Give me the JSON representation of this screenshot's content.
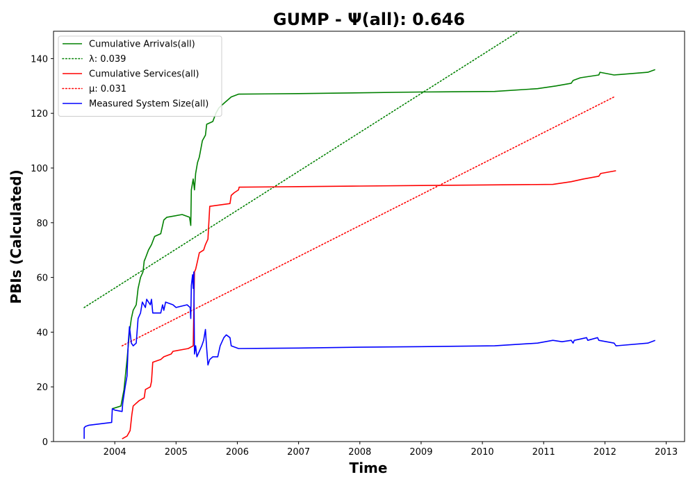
{
  "chart_data": {
    "type": "line",
    "title": "GUMP -  Ψ(all): 0.646",
    "xlabel": "Time",
    "ylabel": "PBIs (Calculated)",
    "xlim": [
      2003.0,
      2013.3
    ],
    "ylim": [
      0,
      150
    ],
    "x_ticks": [
      "2004",
      "2005",
      "2006",
      "2007",
      "2008",
      "2009",
      "2010",
      "2011",
      "2012",
      "2013"
    ],
    "y_ticks": [
      "0",
      "20",
      "40",
      "60",
      "80",
      "100",
      "120",
      "140"
    ],
    "grid": false,
    "legend_position": "upper-left",
    "series": [
      {
        "name": "Cumulative Arrivals(all)",
        "color": "#008000",
        "style": "solid",
        "points": [
          [
            2003.96,
            12
          ],
          [
            2004.1,
            13
          ],
          [
            2004.15,
            19
          ],
          [
            2004.2,
            30
          ],
          [
            2004.24,
            40
          ],
          [
            2004.27,
            45
          ],
          [
            2004.3,
            48
          ],
          [
            2004.35,
            50
          ],
          [
            2004.38,
            56
          ],
          [
            2004.42,
            60
          ],
          [
            2004.46,
            62
          ],
          [
            2004.48,
            66
          ],
          [
            2004.5,
            67
          ],
          [
            2004.55,
            70
          ],
          [
            2004.6,
            72
          ],
          [
            2004.65,
            75
          ],
          [
            2004.75,
            76
          ],
          [
            2004.8,
            81
          ],
          [
            2004.85,
            82
          ],
          [
            2005.1,
            83
          ],
          [
            2005.22,
            82
          ],
          [
            2005.24,
            79
          ],
          [
            2005.25,
            92
          ],
          [
            2005.28,
            96
          ],
          [
            2005.3,
            92
          ],
          [
            2005.32,
            98
          ],
          [
            2005.35,
            102
          ],
          [
            2005.38,
            104
          ],
          [
            2005.43,
            110
          ],
          [
            2005.48,
            112
          ],
          [
            2005.5,
            116
          ],
          [
            2005.6,
            117
          ],
          [
            2005.65,
            120
          ],
          [
            2005.7,
            122
          ],
          [
            2005.8,
            124
          ],
          [
            2005.9,
            126
          ],
          [
            2006.02,
            127
          ],
          [
            2007.0,
            127.2
          ],
          [
            2008.0,
            127.5
          ],
          [
            2009.0,
            127.8
          ],
          [
            2010.2,
            128
          ],
          [
            2010.9,
            129
          ],
          [
            2011.2,
            130
          ],
          [
            2011.45,
            131
          ],
          [
            2011.48,
            132
          ],
          [
            2011.6,
            133
          ],
          [
            2011.9,
            134
          ],
          [
            2011.92,
            135
          ],
          [
            2012.15,
            134
          ],
          [
            2012.7,
            135
          ],
          [
            2012.82,
            136
          ]
        ]
      },
      {
        "name": "λ: 0.039",
        "color": "#008000",
        "style": "dotted",
        "points": [
          [
            2003.5,
            49
          ],
          [
            2010.6,
            150
          ]
        ]
      },
      {
        "name": "Cumulative Services(all)",
        "color": "#ff0000",
        "style": "solid",
        "points": [
          [
            2004.12,
            1
          ],
          [
            2004.2,
            2
          ],
          [
            2004.25,
            4
          ],
          [
            2004.28,
            10
          ],
          [
            2004.3,
            13
          ],
          [
            2004.4,
            15
          ],
          [
            2004.48,
            16
          ],
          [
            2004.5,
            19
          ],
          [
            2004.58,
            20
          ],
          [
            2004.6,
            22
          ],
          [
            2004.62,
            29
          ],
          [
            2004.75,
            30
          ],
          [
            2004.8,
            31
          ],
          [
            2004.92,
            32
          ],
          [
            2004.95,
            33
          ],
          [
            2005.2,
            34
          ],
          [
            2005.28,
            35
          ],
          [
            2005.3,
            62
          ],
          [
            2005.32,
            63
          ],
          [
            2005.35,
            66
          ],
          [
            2005.38,
            69
          ],
          [
            2005.45,
            70
          ],
          [
            2005.48,
            72
          ],
          [
            2005.52,
            74
          ],
          [
            2005.55,
            86
          ],
          [
            2005.88,
            87
          ],
          [
            2005.9,
            90
          ],
          [
            2005.95,
            91
          ],
          [
            2006.02,
            92
          ],
          [
            2006.03,
            93
          ],
          [
            2007.0,
            93.2
          ],
          [
            2008.0,
            93.4
          ],
          [
            2009.0,
            93.6
          ],
          [
            2010.0,
            93.8
          ],
          [
            2011.15,
            94
          ],
          [
            2011.45,
            95
          ],
          [
            2011.65,
            96
          ],
          [
            2011.9,
            97
          ],
          [
            2011.93,
            98
          ],
          [
            2012.18,
            99
          ]
        ]
      },
      {
        "name": "μ: 0.031",
        "color": "#ff0000",
        "style": "dotted",
        "points": [
          [
            2004.12,
            35
          ],
          [
            2012.15,
            126
          ]
        ]
      },
      {
        "name": "Measured System Size(all)",
        "color": "#0000ff",
        "style": "solid",
        "points": [
          [
            2003.5,
            1
          ],
          [
            2003.5,
            5
          ],
          [
            2003.52,
            5.5
          ],
          [
            2003.58,
            6
          ],
          [
            2003.95,
            7
          ],
          [
            2003.96,
            12
          ],
          [
            2004.0,
            11.5
          ],
          [
            2004.12,
            11
          ],
          [
            2004.13,
            14
          ],
          [
            2004.17,
            20
          ],
          [
            2004.2,
            24
          ],
          [
            2004.22,
            36
          ],
          [
            2004.24,
            42
          ],
          [
            2004.27,
            36
          ],
          [
            2004.3,
            35
          ],
          [
            2004.35,
            36
          ],
          [
            2004.38,
            45
          ],
          [
            2004.42,
            47
          ],
          [
            2004.45,
            51
          ],
          [
            2004.5,
            49
          ],
          [
            2004.52,
            52
          ],
          [
            2004.58,
            50
          ],
          [
            2004.6,
            52
          ],
          [
            2004.62,
            47
          ],
          [
            2004.75,
            47
          ],
          [
            2004.78,
            50
          ],
          [
            2004.8,
            48
          ],
          [
            2004.83,
            51
          ],
          [
            2004.95,
            50
          ],
          [
            2005.0,
            49
          ],
          [
            2005.18,
            50
          ],
          [
            2005.23,
            49
          ],
          [
            2005.24,
            45
          ],
          [
            2005.25,
            57
          ],
          [
            2005.27,
            61
          ],
          [
            2005.28,
            56
          ],
          [
            2005.29,
            62
          ],
          [
            2005.3,
            32
          ],
          [
            2005.32,
            35
          ],
          [
            2005.34,
            31
          ],
          [
            2005.38,
            33
          ],
          [
            2005.42,
            35
          ],
          [
            2005.45,
            37
          ],
          [
            2005.48,
            41
          ],
          [
            2005.5,
            34
          ],
          [
            2005.52,
            28
          ],
          [
            2005.55,
            30
          ],
          [
            2005.6,
            31
          ],
          [
            2005.68,
            31
          ],
          [
            2005.72,
            35
          ],
          [
            2005.78,
            38
          ],
          [
            2005.82,
            39
          ],
          [
            2005.88,
            38
          ],
          [
            2005.9,
            35
          ],
          [
            2006.02,
            34
          ],
          [
            2007.0,
            34.2
          ],
          [
            2008.0,
            34.5
          ],
          [
            2009.0,
            34.7
          ],
          [
            2010.2,
            35
          ],
          [
            2010.9,
            36
          ],
          [
            2011.15,
            37
          ],
          [
            2011.3,
            36.5
          ],
          [
            2011.45,
            37
          ],
          [
            2011.48,
            36
          ],
          [
            2011.5,
            37
          ],
          [
            2011.6,
            37.5
          ],
          [
            2011.7,
            38
          ],
          [
            2011.72,
            37
          ],
          [
            2011.88,
            38
          ],
          [
            2011.9,
            37
          ],
          [
            2012.15,
            36
          ],
          [
            2012.18,
            35
          ],
          [
            2012.7,
            36
          ],
          [
            2012.82,
            37
          ]
        ]
      }
    ]
  }
}
